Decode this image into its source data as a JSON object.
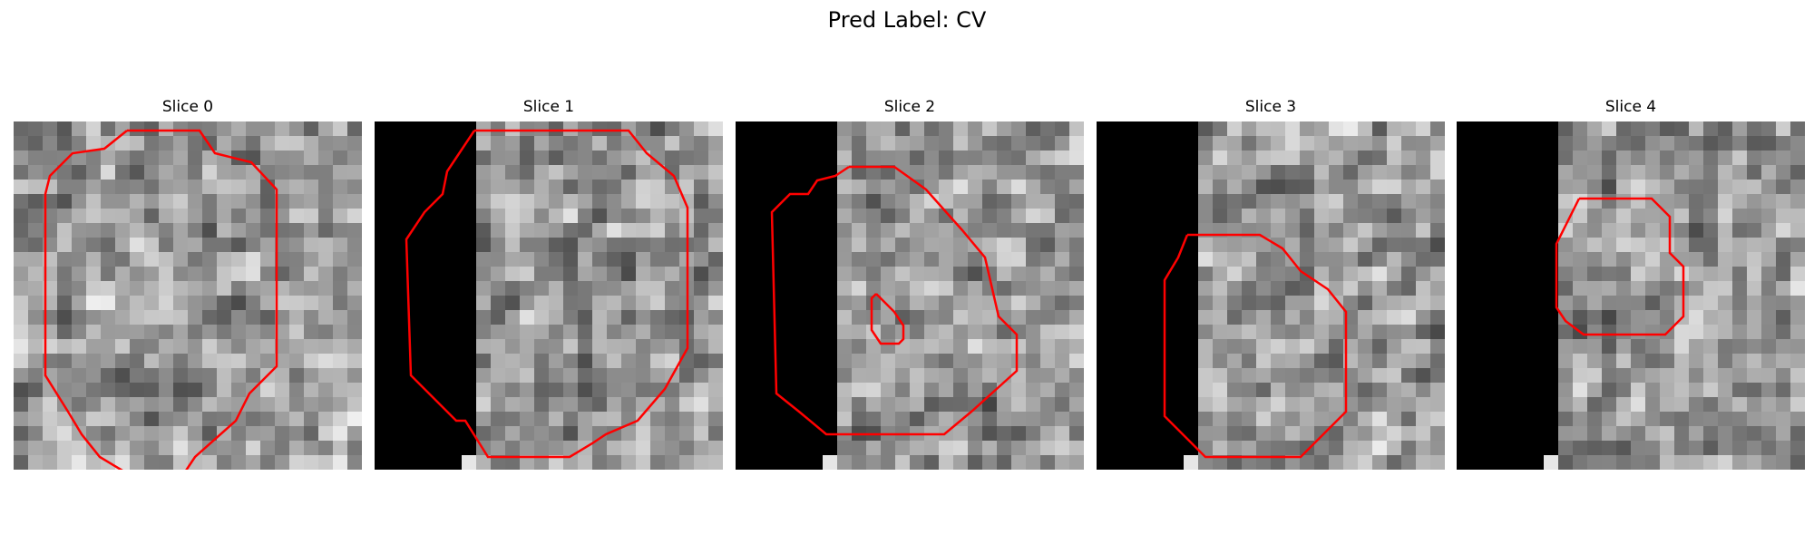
{
  "figure": {
    "title": "Pred Label: CV"
  },
  "colors": {
    "contour": "#ff0000",
    "background": "#ffffff"
  },
  "panels": [
    {
      "title": "Slice 0",
      "seed": 11,
      "black_cols": 0
    },
    {
      "title": "Slice 1",
      "seed": 23,
      "black_cols": 7
    },
    {
      "title": "Slice 2",
      "seed": 37,
      "black_cols": 7
    },
    {
      "title": "Slice 3",
      "seed": 41,
      "black_cols": 7
    },
    {
      "title": "Slice 4",
      "seed": 53,
      "black_cols": 7
    }
  ]
}
